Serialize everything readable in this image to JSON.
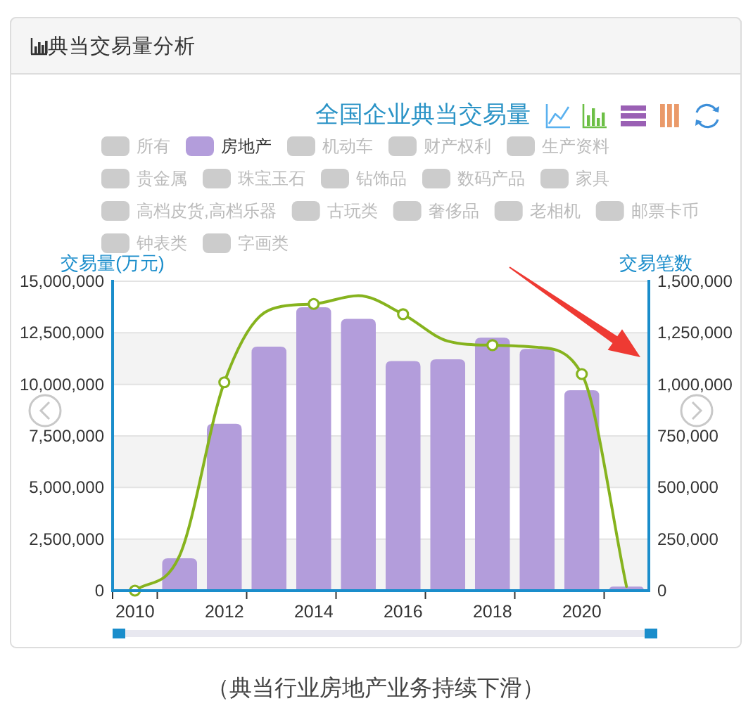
{
  "chart_data": {
    "type": "bar",
    "title": "典当交易量分析",
    "subtitle": "全国企业典当交易量",
    "annotations": [
      "（典当行业房地产业务持续下滑）"
    ],
    "ylabel": "交易量(万元)",
    "y2label": "交易笔数",
    "categories": [
      "2010",
      null,
      "2012",
      null,
      "2014",
      null,
      "2016",
      null,
      "2018",
      null,
      "2020",
      null
    ],
    "series": [
      {
        "name": "所有",
        "color": "#cccccc",
        "values": [
          null,
          null,
          null,
          null,
          null,
          null,
          null,
          null,
          null,
          null,
          null,
          null
        ]
      },
      {
        "name": "房地产",
        "color": "#b39ddb",
        "values": [
          null,
          1570000,
          8090000,
          11830000,
          13740000,
          13180000,
          11130000,
          11220000,
          12260000,
          11720000,
          9720000,
          200000
        ]
      },
      {
        "name": "机动车",
        "color": "#cccccc",
        "values": [
          null,
          null,
          null,
          null,
          null,
          null,
          null,
          null,
          null,
          null,
          null,
          null
        ]
      },
      {
        "name": "财产权利",
        "color": "#cccccc",
        "values": [
          null,
          null,
          null,
          null,
          null,
          null,
          null,
          null,
          null,
          null,
          null,
          null
        ]
      },
      {
        "name": "生产资料",
        "color": "#cccccc",
        "values": [
          null,
          null,
          null,
          null,
          null,
          null,
          null,
          null,
          null,
          null,
          null,
          null
        ]
      },
      {
        "name": "贵金属",
        "color": "#cccccc",
        "values": [
          null,
          null,
          null,
          null,
          null,
          null,
          null,
          null,
          null,
          null,
          null,
          null
        ]
      },
      {
        "name": "珠宝玉石",
        "color": "#cccccc",
        "values": [
          null,
          null,
          null,
          null,
          null,
          null,
          null,
          null,
          null,
          null,
          null,
          null
        ]
      },
      {
        "name": "钻饰品",
        "color": "#cccccc",
        "values": [
          null,
          null,
          null,
          null,
          null,
          null,
          null,
          null,
          null,
          null,
          null,
          null
        ]
      },
      {
        "name": "数码产品",
        "color": "#cccccc",
        "values": [
          null,
          null,
          null,
          null,
          null,
          null,
          null,
          null,
          null,
          null,
          null,
          null
        ]
      },
      {
        "name": "家具",
        "color": "#cccccc",
        "values": [
          null,
          null,
          null,
          null,
          null,
          null,
          null,
          null,
          null,
          null,
          null,
          null
        ]
      },
      {
        "name": "高档皮货,高档乐器",
        "color": "#cccccc",
        "values": [
          null,
          null,
          null,
          null,
          null,
          null,
          null,
          null,
          null,
          null,
          null,
          null
        ]
      },
      {
        "name": "古玩类",
        "color": "#cccccc",
        "values": [
          null,
          null,
          null,
          null,
          null,
          null,
          null,
          null,
          null,
          null,
          null,
          null
        ]
      },
      {
        "name": "奢侈品",
        "color": "#cccccc",
        "values": [
          null,
          null,
          null,
          null,
          null,
          null,
          null,
          null,
          null,
          null,
          null,
          null
        ]
      },
      {
        "name": "老相机",
        "color": "#cccccc",
        "values": [
          null,
          null,
          null,
          null,
          null,
          null,
          null,
          null,
          null,
          null,
          null,
          null
        ]
      },
      {
        "name": "邮票卡币",
        "color": "#cccccc",
        "values": [
          null,
          null,
          null,
          null,
          null,
          null,
          null,
          null,
          null,
          null,
          null,
          null
        ]
      },
      {
        "name": "钟表类",
        "color": "#cccccc",
        "values": [
          null,
          null,
          null,
          null,
          null,
          null,
          null,
          null,
          null,
          null,
          null,
          null
        ]
      },
      {
        "name": "字画类",
        "color": "#cccccc",
        "values": [
          null,
          null,
          null,
          null,
          null,
          null,
          null,
          null,
          null,
          null,
          null,
          null
        ]
      },
      {
        "type": "line",
        "axis": "y2",
        "color": "#86b31e",
        "values": [
          0,
          170000,
          1010000,
          1360000,
          1390000,
          1430000,
          1340000,
          1210000,
          1190000,
          1180000,
          1050000,
          20000
        ]
      }
    ],
    "ylim": [
      0,
      15000000
    ],
    "yticks": [
      0,
      {
        "value": 2500000,
        "label": "2,500,000"
      },
      {
        "value": 5000000,
        "label": "5,000,000"
      },
      {
        "value": 7500000,
        "label": "7,500,000"
      },
      {
        "value": 10000000,
        "label": "10,000,000"
      },
      {
        "value": 12500000,
        "label": "12,500,000"
      },
      {
        "value": 15000000,
        "label": "15,000,000"
      }
    ],
    "y2lim": [
      0,
      1500000
    ],
    "y2ticks": [
      0,
      {
        "value": 250000,
        "label": "250,000"
      },
      {
        "value": 500000,
        "label": "500,000"
      },
      {
        "value": 750000,
        "label": "750,000"
      },
      {
        "value": 1000000,
        "label": "1,000,000"
      },
      {
        "value": 1250000,
        "label": "1,250,000"
      },
      {
        "value": 1500000,
        "label": "1,500,000"
      }
    ],
    "grid": "y",
    "legend": "top",
    "marker": "circle"
  }
}
